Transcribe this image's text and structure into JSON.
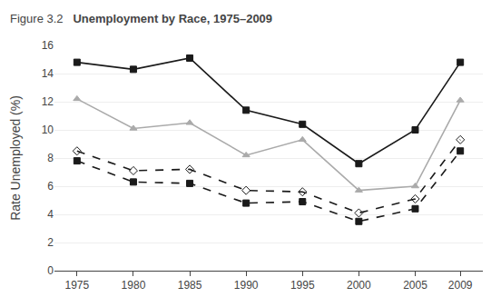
{
  "chart_data": {
    "type": "line",
    "title": "Unemployment by Race, 1975–2009",
    "annotations": [
      "Figure 3.2"
    ],
    "y_label": "Rate Unemployed (%)",
    "x": [
      1975,
      1980,
      1985,
      1990,
      1995,
      2000,
      2005,
      2009
    ],
    "series": [
      {
        "color": "#1a1a1a",
        "marker": "square",
        "line_style": "solid",
        "values": [
          14.8,
          14.3,
          15.1,
          11.4,
          10.4,
          7.6,
          10.0,
          14.8
        ]
      },
      {
        "color": "#aaaaaa",
        "marker": "triangle-up",
        "line_style": "solid",
        "values": [
          12.2,
          10.1,
          10.5,
          8.2,
          9.3,
          5.7,
          6.0,
          12.1
        ]
      },
      {
        "color": "#1a1a1a",
        "marker": "square",
        "line_style": "dashed",
        "values": [
          7.8,
          6.3,
          6.2,
          4.8,
          4.9,
          3.5,
          4.4,
          8.5
        ]
      },
      {
        "color": "#1a1a1a",
        "marker": "diamond-open",
        "line_style": "dashed",
        "values": [
          8.5,
          7.1,
          7.2,
          5.7,
          5.6,
          4.1,
          5.1,
          9.3
        ]
      }
    ],
    "xlim": [
      1973,
      2011
    ],
    "xticks": [
      1975,
      1980,
      1985,
      1990,
      1995,
      2000,
      2005,
      2009
    ],
    "ylim": [
      0,
      16
    ],
    "yticks": [
      0,
      2,
      4,
      6,
      8,
      10,
      12,
      14,
      16
    ],
    "grid": true
  }
}
